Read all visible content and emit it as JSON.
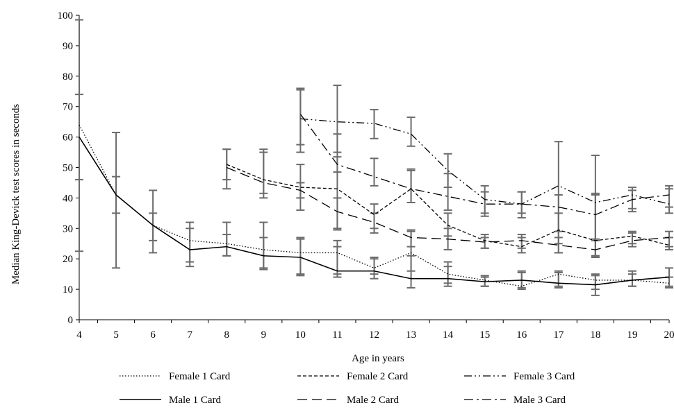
{
  "chart_data": {
    "type": "line",
    "title": "",
    "xlabel": "Age in years",
    "ylabel": "Median King-Devick test scores in seconds",
    "xlim": [
      4,
      20
    ],
    "ylim": [
      0,
      100
    ],
    "x_ticks": [
      "4",
      "5",
      "6",
      "7",
      "8",
      "9",
      "10",
      "11",
      "12",
      "13",
      "14",
      "15",
      "16",
      "17",
      "18",
      "19",
      "20"
    ],
    "y_ticks": [
      "0",
      "10",
      "20",
      "30",
      "40",
      "50",
      "60",
      "70",
      "80",
      "90",
      "100"
    ],
    "legend_position": "bottom",
    "series": [
      {
        "name": "Female 1 Card",
        "dash": "dotted",
        "x": [
          4,
          5,
          6,
          7,
          8,
          9,
          10,
          11,
          12,
          13,
          14,
          15,
          16,
          17,
          18,
          19,
          20
        ],
        "y": [
          64,
          41,
          31,
          26,
          25,
          23,
          22,
          22,
          17,
          22,
          15,
          13,
          11,
          15,
          13,
          13,
          12
        ],
        "err_low": [
          46,
          35,
          26,
          19,
          21,
          17,
          15,
          15,
          15,
          16,
          12,
          11,
          10,
          11,
          10,
          11,
          10.5
        ],
        "err_high": [
          74,
          47,
          35,
          32,
          32,
          32,
          27,
          26,
          20,
          29,
          19,
          14,
          16,
          16,
          15,
          16,
          14
        ]
      },
      {
        "name": "Female 2 Card",
        "dash": "short-dash",
        "x": [
          8,
          9,
          10,
          11,
          12,
          13,
          14,
          15,
          16,
          17,
          18,
          19,
          20
        ],
        "y": [
          51,
          46,
          43.5,
          43,
          34.5,
          43,
          31,
          26,
          24,
          29.5,
          26,
          27.5,
          24.5
        ],
        "err_low": [
          43,
          40,
          36,
          30,
          30,
          38.5,
          27.5,
          23.5,
          22,
          22,
          21,
          25,
          23
        ],
        "err_high": [
          56,
          56,
          51,
          61,
          38,
          49.5,
          35,
          28,
          27,
          35,
          41,
          29,
          27
        ]
      },
      {
        "name": "Female 3 Card",
        "dash": "dash-dot-dot",
        "x": [
          10,
          11,
          12,
          13,
          14,
          15,
          16,
          17,
          18,
          19,
          20
        ],
        "y": [
          66,
          65,
          64.5,
          61,
          49,
          39.5,
          38,
          44,
          38.5,
          41,
          38
        ],
        "err_low": [
          57.5,
          55,
          59.5,
          57,
          43.5,
          35,
          35,
          25,
          26,
          35.5,
          35
        ],
        "err_high": [
          76,
          77,
          69,
          66.5,
          54.5,
          44,
          42,
          58.5,
          54,
          43.5,
          44
        ]
      },
      {
        "name": "Male 1 Card",
        "dash": "solid",
        "x": [
          4,
          5,
          6,
          7,
          8,
          9,
          10,
          11,
          12,
          13,
          14,
          15,
          16,
          17,
          18,
          19,
          20
        ],
        "y": [
          60,
          41,
          31,
          23,
          24,
          21,
          20.5,
          16,
          16,
          13.5,
          13.5,
          12.5,
          13,
          12,
          11.5,
          13,
          14
        ],
        "err_low": [
          22.5,
          17,
          22,
          17.5,
          21,
          16.5,
          14.5,
          14,
          13.5,
          10.5,
          11,
          11,
          10.5,
          10.5,
          8,
          11,
          11
        ],
        "err_high": [
          98.5,
          61.5,
          42.5,
          30,
          28,
          27,
          26.5,
          24,
          20.5,
          21,
          17.5,
          14.5,
          15.5,
          15.5,
          14.5,
          15,
          17
        ]
      },
      {
        "name": "Male 2 Card",
        "dash": "long-dash",
        "x": [
          8,
          9,
          10,
          11,
          12,
          13,
          14,
          15,
          16,
          17,
          18,
          19,
          20
        ],
        "y": [
          50,
          45,
          42.5,
          35.5,
          32,
          27,
          26.5,
          25.5,
          26,
          24.5,
          23,
          26,
          27
        ],
        "err_low": [
          46,
          41.5,
          40,
          29.5,
          28.5,
          24,
          23,
          23.5,
          23.5,
          22,
          20.5,
          24,
          24
        ],
        "err_high": [
          56,
          55,
          45,
          40,
          35,
          29.5,
          30,
          27,
          28,
          27,
          26.5,
          28.5,
          29
        ]
      },
      {
        "name": "Male 3 Card",
        "dash": "dash-dot",
        "x": [
          10,
          11,
          12,
          13,
          14,
          15,
          16,
          17,
          18,
          19,
          20
        ],
        "y": [
          67.5,
          51,
          47,
          43,
          40.5,
          38,
          38,
          37,
          34.5,
          39.5,
          41
        ],
        "err_low": [
          55,
          48.5,
          44,
          38.5,
          36,
          34,
          33.5,
          29,
          21,
          36.5,
          37
        ],
        "err_high": [
          75.5,
          53.5,
          53,
          49,
          48,
          42,
          42,
          41,
          41.5,
          42.5,
          43
        ]
      }
    ]
  }
}
